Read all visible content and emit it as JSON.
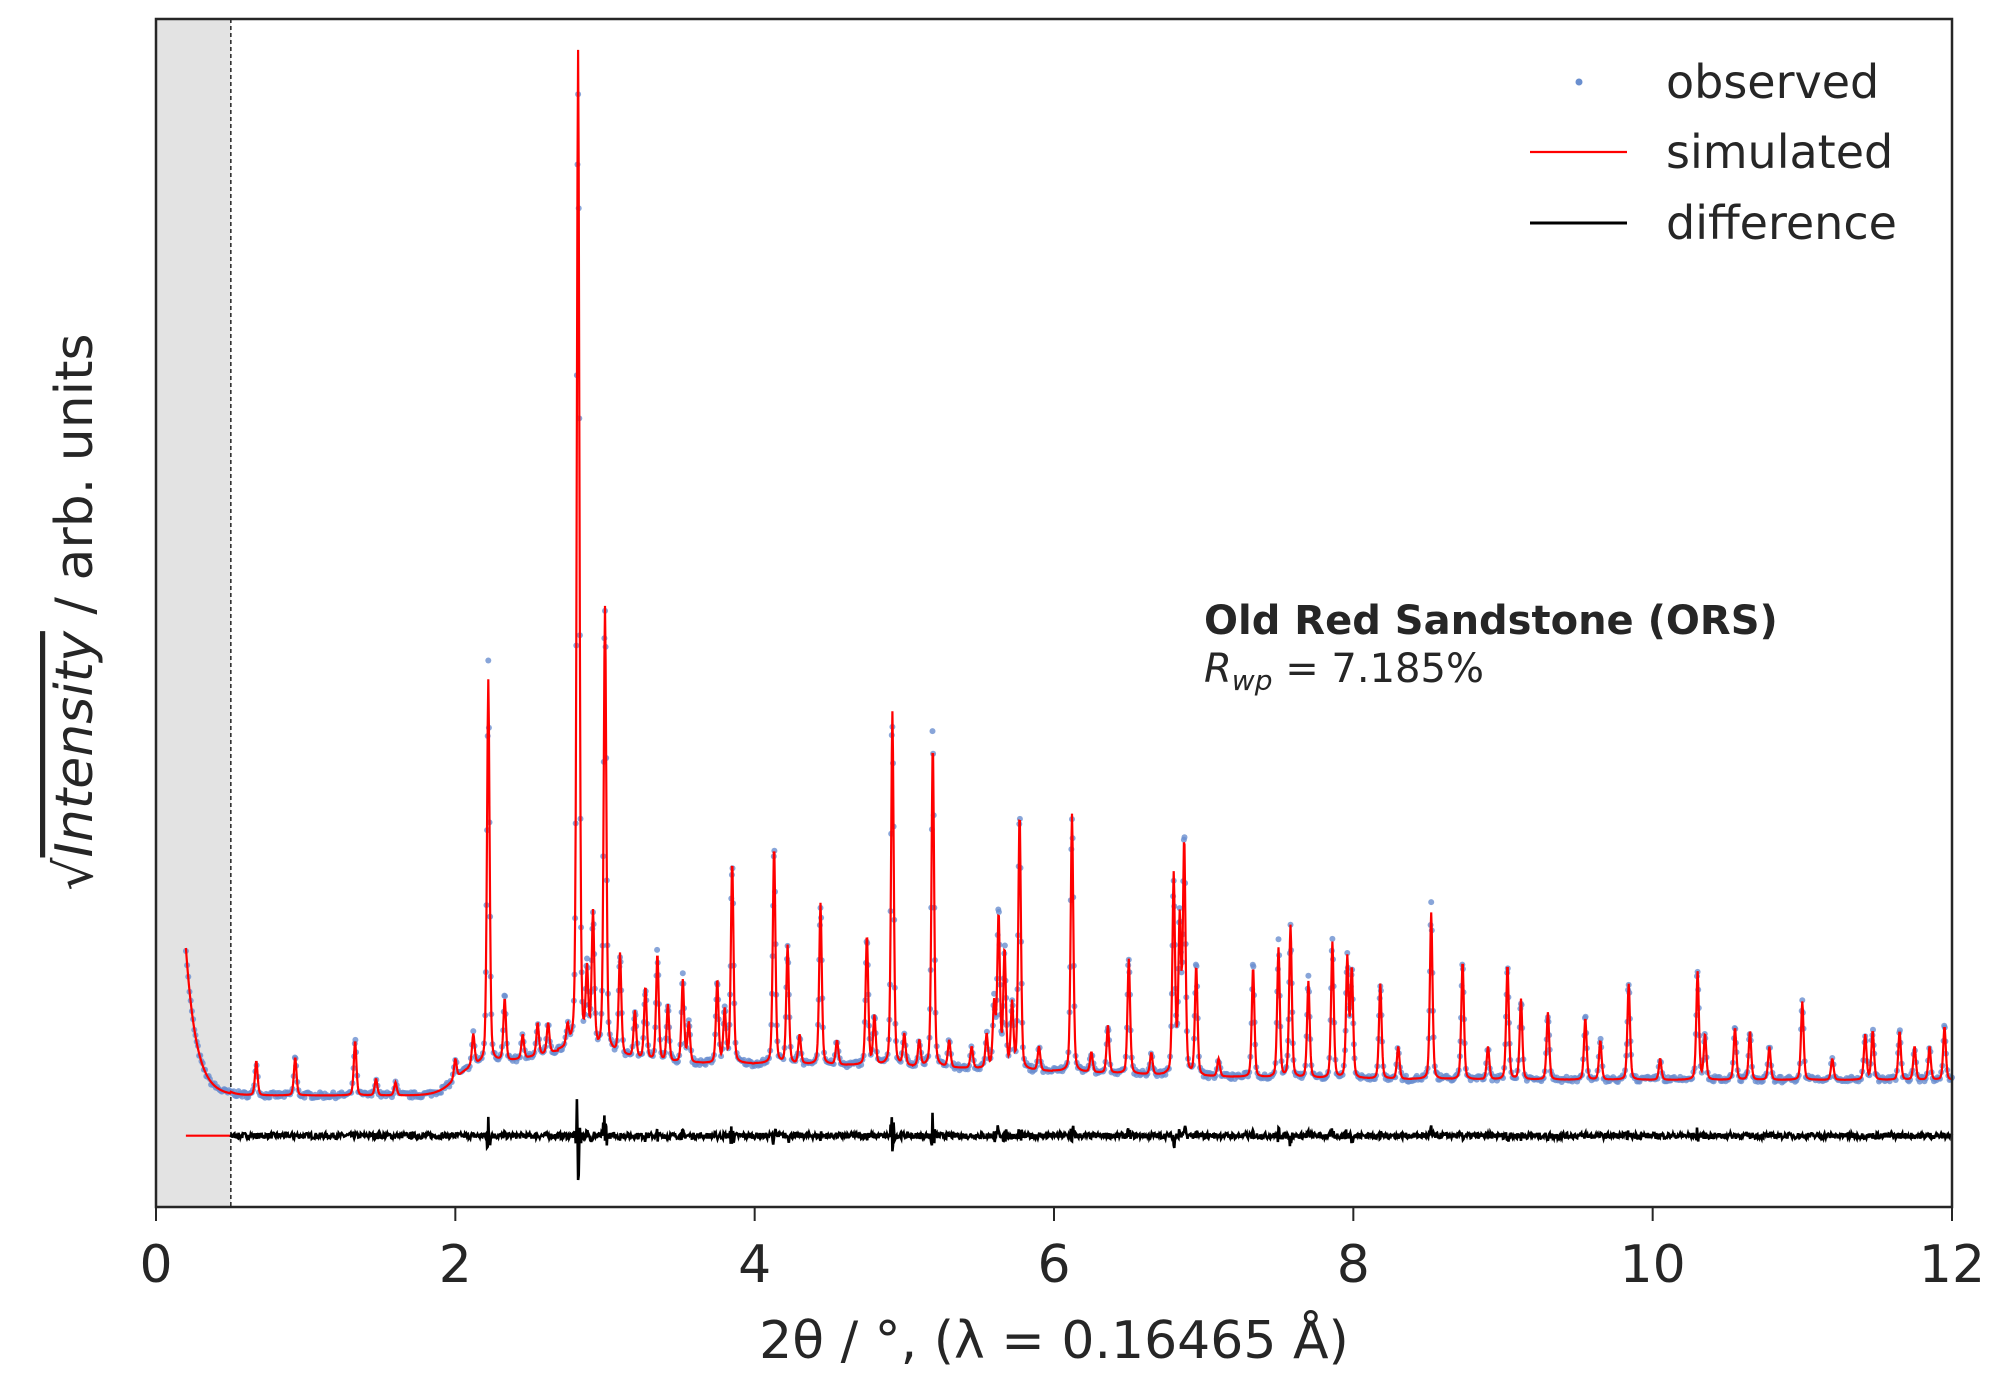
{
  "chart_data": {
    "type": "line",
    "xlabel": "2θ / °, (λ = 0.16465 Å)",
    "ylabel_prefix": "√",
    "ylabel_italic": "Intensity",
    "ylabel_suffix": " / arb. units",
    "xlim": [
      0,
      12
    ],
    "ylim": [
      0,
      100
    ],
    "xticks": [
      "0",
      "2",
      "4",
      "6",
      "8",
      "10",
      "12"
    ],
    "yticks": [],
    "grid": false,
    "excluded_region": [
      0,
      0.5
    ],
    "legend": {
      "placement": "top-right",
      "entries": [
        {
          "label": "observed",
          "marker": "dot",
          "color": "#6a8fcf"
        },
        {
          "label": "simulated",
          "marker": "line",
          "color": "#ff0000"
        },
        {
          "label": "difference",
          "marker": "line",
          "color": "#000000"
        }
      ]
    },
    "annotation": {
      "title": "Old Red Sandstone (ORS)",
      "metric_symbol": "R",
      "metric_subscript": "wp",
      "metric_value": " = 7.185%"
    },
    "x_range_data": [
      0.2,
      12
    ],
    "difference_offset": 6.0,
    "peaks": [
      [
        0.67,
        12.3
      ],
      [
        0.93,
        12.6
      ],
      [
        1.33,
        14.0
      ],
      [
        1.47,
        10.8
      ],
      [
        1.6,
        10.5
      ],
      [
        2.0,
        12.5
      ],
      [
        2.12,
        14.5
      ],
      [
        2.22,
        44.4
      ],
      [
        2.33,
        17.5
      ],
      [
        2.45,
        14.5
      ],
      [
        2.55,
        15.5
      ],
      [
        2.62,
        15.5
      ],
      [
        2.75,
        15
      ],
      [
        2.82,
        97.3
      ],
      [
        2.88,
        19.5
      ],
      [
        2.92,
        24.5
      ],
      [
        3.0,
        50.5
      ],
      [
        3.1,
        21.3
      ],
      [
        3.2,
        16.5
      ],
      [
        3.27,
        18.5
      ],
      [
        3.35,
        21.3
      ],
      [
        3.42,
        17
      ],
      [
        3.52,
        19.1
      ],
      [
        3.56,
        15.5
      ],
      [
        3.75,
        19.1
      ],
      [
        3.8,
        16.5
      ],
      [
        3.85,
        29.1
      ],
      [
        4.13,
        30.4
      ],
      [
        4.22,
        22.0
      ],
      [
        4.3,
        14.5
      ],
      [
        4.44,
        25.6
      ],
      [
        4.55,
        14
      ],
      [
        4.75,
        22.9
      ],
      [
        4.8,
        16
      ],
      [
        4.92,
        41.7
      ],
      [
        5.0,
        14.5
      ],
      [
        5.1,
        14
      ],
      [
        5.19,
        39.0
      ],
      [
        5.3,
        14
      ],
      [
        5.45,
        13.5
      ],
      [
        5.55,
        14.5
      ],
      [
        5.6,
        17
      ],
      [
        5.63,
        24.5
      ],
      [
        5.67,
        21.5
      ],
      [
        5.72,
        17
      ],
      [
        5.77,
        33.1
      ],
      [
        5.9,
        13.5
      ],
      [
        6.12,
        33.1
      ],
      [
        6.25,
        13
      ],
      [
        6.36,
        15.3
      ],
      [
        6.5,
        20.9
      ],
      [
        6.65,
        13
      ],
      [
        6.8,
        27.9
      ],
      [
        6.84,
        24
      ],
      [
        6.87,
        30.6
      ],
      [
        6.95,
        20.2
      ],
      [
        7.1,
        12.5
      ],
      [
        7.33,
        20.2
      ],
      [
        7.5,
        21.8
      ],
      [
        7.58,
        23.7
      ],
      [
        7.7,
        19
      ],
      [
        7.86,
        22.3
      ],
      [
        7.96,
        20.9
      ],
      [
        7.99,
        20
      ],
      [
        8.18,
        18.8
      ],
      [
        8.3,
        13.5
      ],
      [
        8.52,
        24.8
      ],
      [
        8.73,
        20.7
      ],
      [
        8.9,
        13.5
      ],
      [
        9.03,
        20.4
      ],
      [
        9.12,
        17.5
      ],
      [
        9.3,
        16.4
      ],
      [
        9.55,
        15.9
      ],
      [
        9.65,
        14
      ],
      [
        9.84,
        18.8
      ],
      [
        10.05,
        12.5
      ],
      [
        10.3,
        19.8
      ],
      [
        10.35,
        14.5
      ],
      [
        10.55,
        15.1
      ],
      [
        10.65,
        14.8
      ],
      [
        10.78,
        13.5
      ],
      [
        11.0,
        17.3
      ],
      [
        11.2,
        12.5
      ],
      [
        11.42,
        14.5
      ],
      [
        11.47,
        14.8
      ],
      [
        11.65,
        14.8
      ],
      [
        11.75,
        13.5
      ],
      [
        11.85,
        13.5
      ],
      [
        11.95,
        15.2
      ]
    ]
  }
}
